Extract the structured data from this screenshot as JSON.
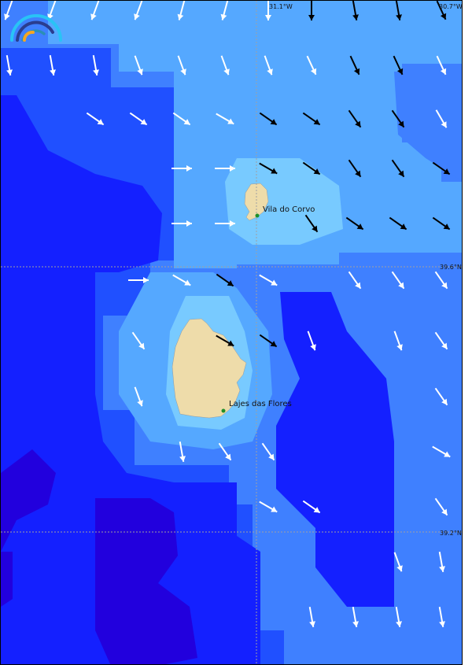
{
  "map": {
    "places": [
      {
        "name": "Vila do Corvo"
      },
      {
        "name": "Lajes das Flores"
      }
    ],
    "longitude_labels": [
      "31.1°W",
      "30.7°W"
    ],
    "latitude_labels": [
      "39.6°N",
      "39.2°N"
    ],
    "colors": {
      "land": "#eedcaa",
      "settlement_dot": "#1f8f2a",
      "level_0": "#2200dd",
      "level_1": "#1420ff",
      "level_2": "#2050ff",
      "level_3": "#3f80ff",
      "level_4": "#55a8ff",
      "level_5": "#78caff",
      "arrow_light": "#ffffff",
      "arrow_dark": "#000000"
    },
    "logo": "wave-arcs-logo",
    "wind_arrows": [
      [
        [
          0,
          200,
          "w"
        ],
        [
          1,
          200,
          "w"
        ],
        [
          2,
          200,
          "w"
        ],
        [
          3,
          200,
          "w"
        ],
        [
          4,
          195,
          "w"
        ],
        [
          5,
          195,
          "w"
        ],
        [
          6,
          180,
          "w"
        ],
        [
          7,
          180,
          "b"
        ],
        [
          8,
          170,
          "b"
        ],
        [
          9,
          170,
          "b"
        ],
        [
          10,
          155,
          "b"
        ]
      ],
      [
        [
          0,
          170,
          "w"
        ],
        [
          1,
          170,
          "w"
        ],
        [
          2,
          170,
          "w"
        ],
        [
          3,
          160,
          "w"
        ],
        [
          4,
          160,
          "w"
        ],
        [
          5,
          160,
          "w"
        ],
        [
          6,
          160,
          "w"
        ],
        [
          7,
          155,
          "w"
        ],
        [
          8,
          155,
          "b"
        ],
        [
          9,
          155,
          "b"
        ],
        [
          10,
          155,
          "w"
        ]
      ],
      [
        [
          2,
          125,
          "w"
        ],
        [
          3,
          125,
          "w"
        ],
        [
          4,
          125,
          "w"
        ],
        [
          5,
          120,
          "w"
        ],
        [
          6,
          125,
          "b"
        ],
        [
          7,
          125,
          "b"
        ],
        [
          8,
          145,
          "b"
        ],
        [
          9,
          145,
          "b"
        ],
        [
          10,
          150,
          "w"
        ]
      ],
      [
        [
          4,
          90,
          "w"
        ],
        [
          5,
          90,
          "w"
        ],
        [
          6,
          120,
          "b"
        ],
        [
          7,
          125,
          "b"
        ],
        [
          8,
          145,
          "b"
        ],
        [
          9,
          145,
          "b"
        ],
        [
          10,
          125,
          "b"
        ]
      ],
      [
        [
          4,
          90,
          "w"
        ],
        [
          5,
          90,
          "w"
        ],
        [
          7,
          145,
          "b"
        ],
        [
          8,
          125,
          "b"
        ],
        [
          9,
          125,
          "b"
        ],
        [
          10,
          125,
          "b"
        ]
      ],
      [
        [
          3,
          90,
          "w"
        ],
        [
          4,
          120,
          "w"
        ],
        [
          5,
          125,
          "b"
        ],
        [
          6,
          120,
          "w"
        ],
        [
          8,
          145,
          "w"
        ],
        [
          9,
          145,
          "w"
        ],
        [
          10,
          145,
          "w"
        ]
      ],
      [
        [
          3,
          145,
          "w"
        ],
        [
          5,
          120,
          "b"
        ],
        [
          6,
          125,
          "b"
        ],
        [
          7,
          160,
          "w"
        ],
        [
          9,
          160,
          "w"
        ],
        [
          10,
          145,
          "w"
        ]
      ],
      [
        [
          3,
          160,
          "w"
        ],
        [
          10,
          145,
          "w"
        ]
      ],
      [
        [
          4,
          170,
          "w"
        ],
        [
          5,
          145,
          "w"
        ],
        [
          6,
          145,
          "w"
        ],
        [
          10,
          120,
          "w"
        ]
      ],
      [
        [
          6,
          120,
          "w"
        ],
        [
          7,
          125,
          "w"
        ],
        [
          10,
          145,
          "w"
        ]
      ],
      [
        [
          9,
          160,
          "w"
        ],
        [
          10,
          170,
          "w"
        ]
      ],
      [
        [
          7,
          170,
          "w"
        ],
        [
          8,
          170,
          "w"
        ],
        [
          9,
          170,
          "w"
        ],
        [
          10,
          170,
          "w"
        ]
      ]
    ]
  }
}
